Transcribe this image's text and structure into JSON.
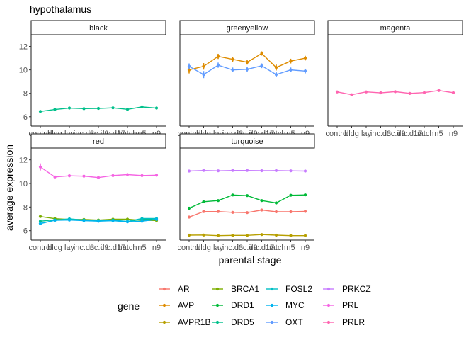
{
  "chart_data": {
    "type": "line",
    "title": "hypothalamus",
    "xlabel": "parental stage",
    "ylabel": "average expression",
    "categories": [
      "control",
      "bldg",
      "lay",
      "inc.d3",
      "inc.d9",
      "inc.d17",
      "hatch",
      "n5",
      "n9"
    ],
    "ylim": [
      5.2,
      13.0
    ],
    "yticks": [
      6,
      8,
      10,
      12
    ],
    "legend": {
      "title": "gene",
      "position": "bottom",
      "entries": [
        "AR",
        "AVP",
        "AVPR1B",
        "BRCA1",
        "DRD1",
        "DRD5",
        "FOSL2",
        "MYC",
        "OXT",
        "PRKCZ",
        "PRL",
        "PRLR"
      ]
    },
    "colors": {
      "AR": "#F8766D",
      "AVP": "#DE8C00",
      "AVPR1B": "#B79F00",
      "BRCA1": "#7CAE00",
      "DRD1": "#00BA38",
      "DRD5": "#00C08B",
      "FOSL2": "#00BFC4",
      "MYC": "#00B4F0",
      "OXT": "#619CFF",
      "PRKCZ": "#C77CFF",
      "PRL": "#F564E3",
      "PRLR": "#FF64B0"
    },
    "panels": [
      {
        "name": "black",
        "series": [
          {
            "name": "DRD5",
            "values": [
              6.45,
              6.62,
              6.74,
              6.69,
              6.71,
              6.76,
              6.63,
              6.84,
              6.74
            ],
            "err": [
              0.07,
              0.06,
              0.06,
              0.06,
              0.06,
              0.06,
              0.06,
              0.06,
              0.06
            ]
          }
        ]
      },
      {
        "name": "greenyellow",
        "series": [
          {
            "name": "AVP",
            "values": [
              10.0,
              10.3,
              11.15,
              10.9,
              10.65,
              11.4,
              10.2,
              10.75,
              11.0
            ],
            "err": [
              0.3,
              0.28,
              0.22,
              0.2,
              0.2,
              0.18,
              0.25,
              0.2,
              0.2
            ]
          },
          {
            "name": "OXT",
            "values": [
              10.3,
              9.6,
              10.4,
              10.0,
              10.05,
              10.35,
              9.6,
              10.0,
              9.9
            ],
            "err": [
              0.25,
              0.3,
              0.22,
              0.2,
              0.2,
              0.2,
              0.22,
              0.2,
              0.2
            ]
          }
        ]
      },
      {
        "name": "magenta",
        "series": [
          {
            "name": "PRLR",
            "values": [
              8.12,
              7.88,
              8.12,
              8.04,
              8.14,
              7.99,
              8.06,
              8.24,
              8.05
            ],
            "err": [
              0.07,
              0.06,
              0.06,
              0.06,
              0.06,
              0.06,
              0.06,
              0.06,
              0.06
            ]
          }
        ]
      },
      {
        "name": "red",
        "series": [
          {
            "name": "PRL",
            "values": [
              11.4,
              10.55,
              10.65,
              10.62,
              10.5,
              10.67,
              10.75,
              10.67,
              10.7
            ],
            "err": [
              0.3,
              0.12,
              0.12,
              0.1,
              0.1,
              0.1,
              0.1,
              0.1,
              0.1
            ]
          },
          {
            "name": "BRCA1",
            "values": [
              7.2,
              7.02,
              6.95,
              6.95,
              6.9,
              6.97,
              6.97,
              6.87,
              6.86
            ],
            "err": [
              0.06,
              0.06,
              0.05,
              0.05,
              0.05,
              0.05,
              0.05,
              0.05,
              0.05
            ]
          },
          {
            "name": "DRD5",
            "values": [
              6.8,
              6.92,
              6.95,
              6.88,
              6.85,
              6.85,
              6.78,
              6.95,
              7.0
            ],
            "err": [
              0.1,
              0.08,
              0.08,
              0.08,
              0.08,
              0.08,
              0.08,
              0.08,
              0.08
            ]
          },
          {
            "name": "FOSL2",
            "values": [
              6.6,
              6.88,
              7.0,
              6.9,
              6.85,
              6.9,
              6.78,
              7.03,
              7.03
            ],
            "err": [
              0.1,
              0.08,
              0.08,
              0.08,
              0.08,
              0.08,
              0.08,
              0.08,
              0.08
            ]
          },
          {
            "name": "MYC",
            "values": [
              6.6,
              6.88,
              6.9,
              6.85,
              6.8,
              6.85,
              6.75,
              6.8,
              6.95
            ],
            "err": [
              0.1,
              0.08,
              0.08,
              0.08,
              0.08,
              0.08,
              0.08,
              0.08,
              0.08
            ]
          }
        ]
      },
      {
        "name": "turquoise",
        "series": [
          {
            "name": "PRKCZ",
            "values": [
              11.05,
              11.1,
              11.07,
              11.1,
              11.1,
              11.08,
              11.09,
              11.07,
              11.05
            ],
            "err": [
              0.05,
              0.05,
              0.05,
              0.05,
              0.05,
              0.05,
              0.05,
              0.05,
              0.05
            ]
          },
          {
            "name": "DRD1",
            "values": [
              7.9,
              8.45,
              8.55,
              9.02,
              8.97,
              8.55,
              8.35,
              9.0,
              9.03
            ],
            "err": [
              0.12,
              0.1,
              0.1,
              0.1,
              0.1,
              0.1,
              0.1,
              0.1,
              0.1
            ]
          },
          {
            "name": "AR",
            "values": [
              7.15,
              7.62,
              7.62,
              7.55,
              7.53,
              7.75,
              7.6,
              7.6,
              7.63
            ],
            "err": [
              0.08,
              0.07,
              0.07,
              0.07,
              0.07,
              0.07,
              0.07,
              0.07,
              0.07
            ]
          },
          {
            "name": "AVPR1B",
            "values": [
              5.62,
              5.63,
              5.58,
              5.6,
              5.6,
              5.67,
              5.62,
              5.58,
              5.58
            ],
            "err": [
              0.04,
              0.04,
              0.04,
              0.04,
              0.04,
              0.04,
              0.04,
              0.04,
              0.04
            ]
          }
        ]
      }
    ]
  }
}
